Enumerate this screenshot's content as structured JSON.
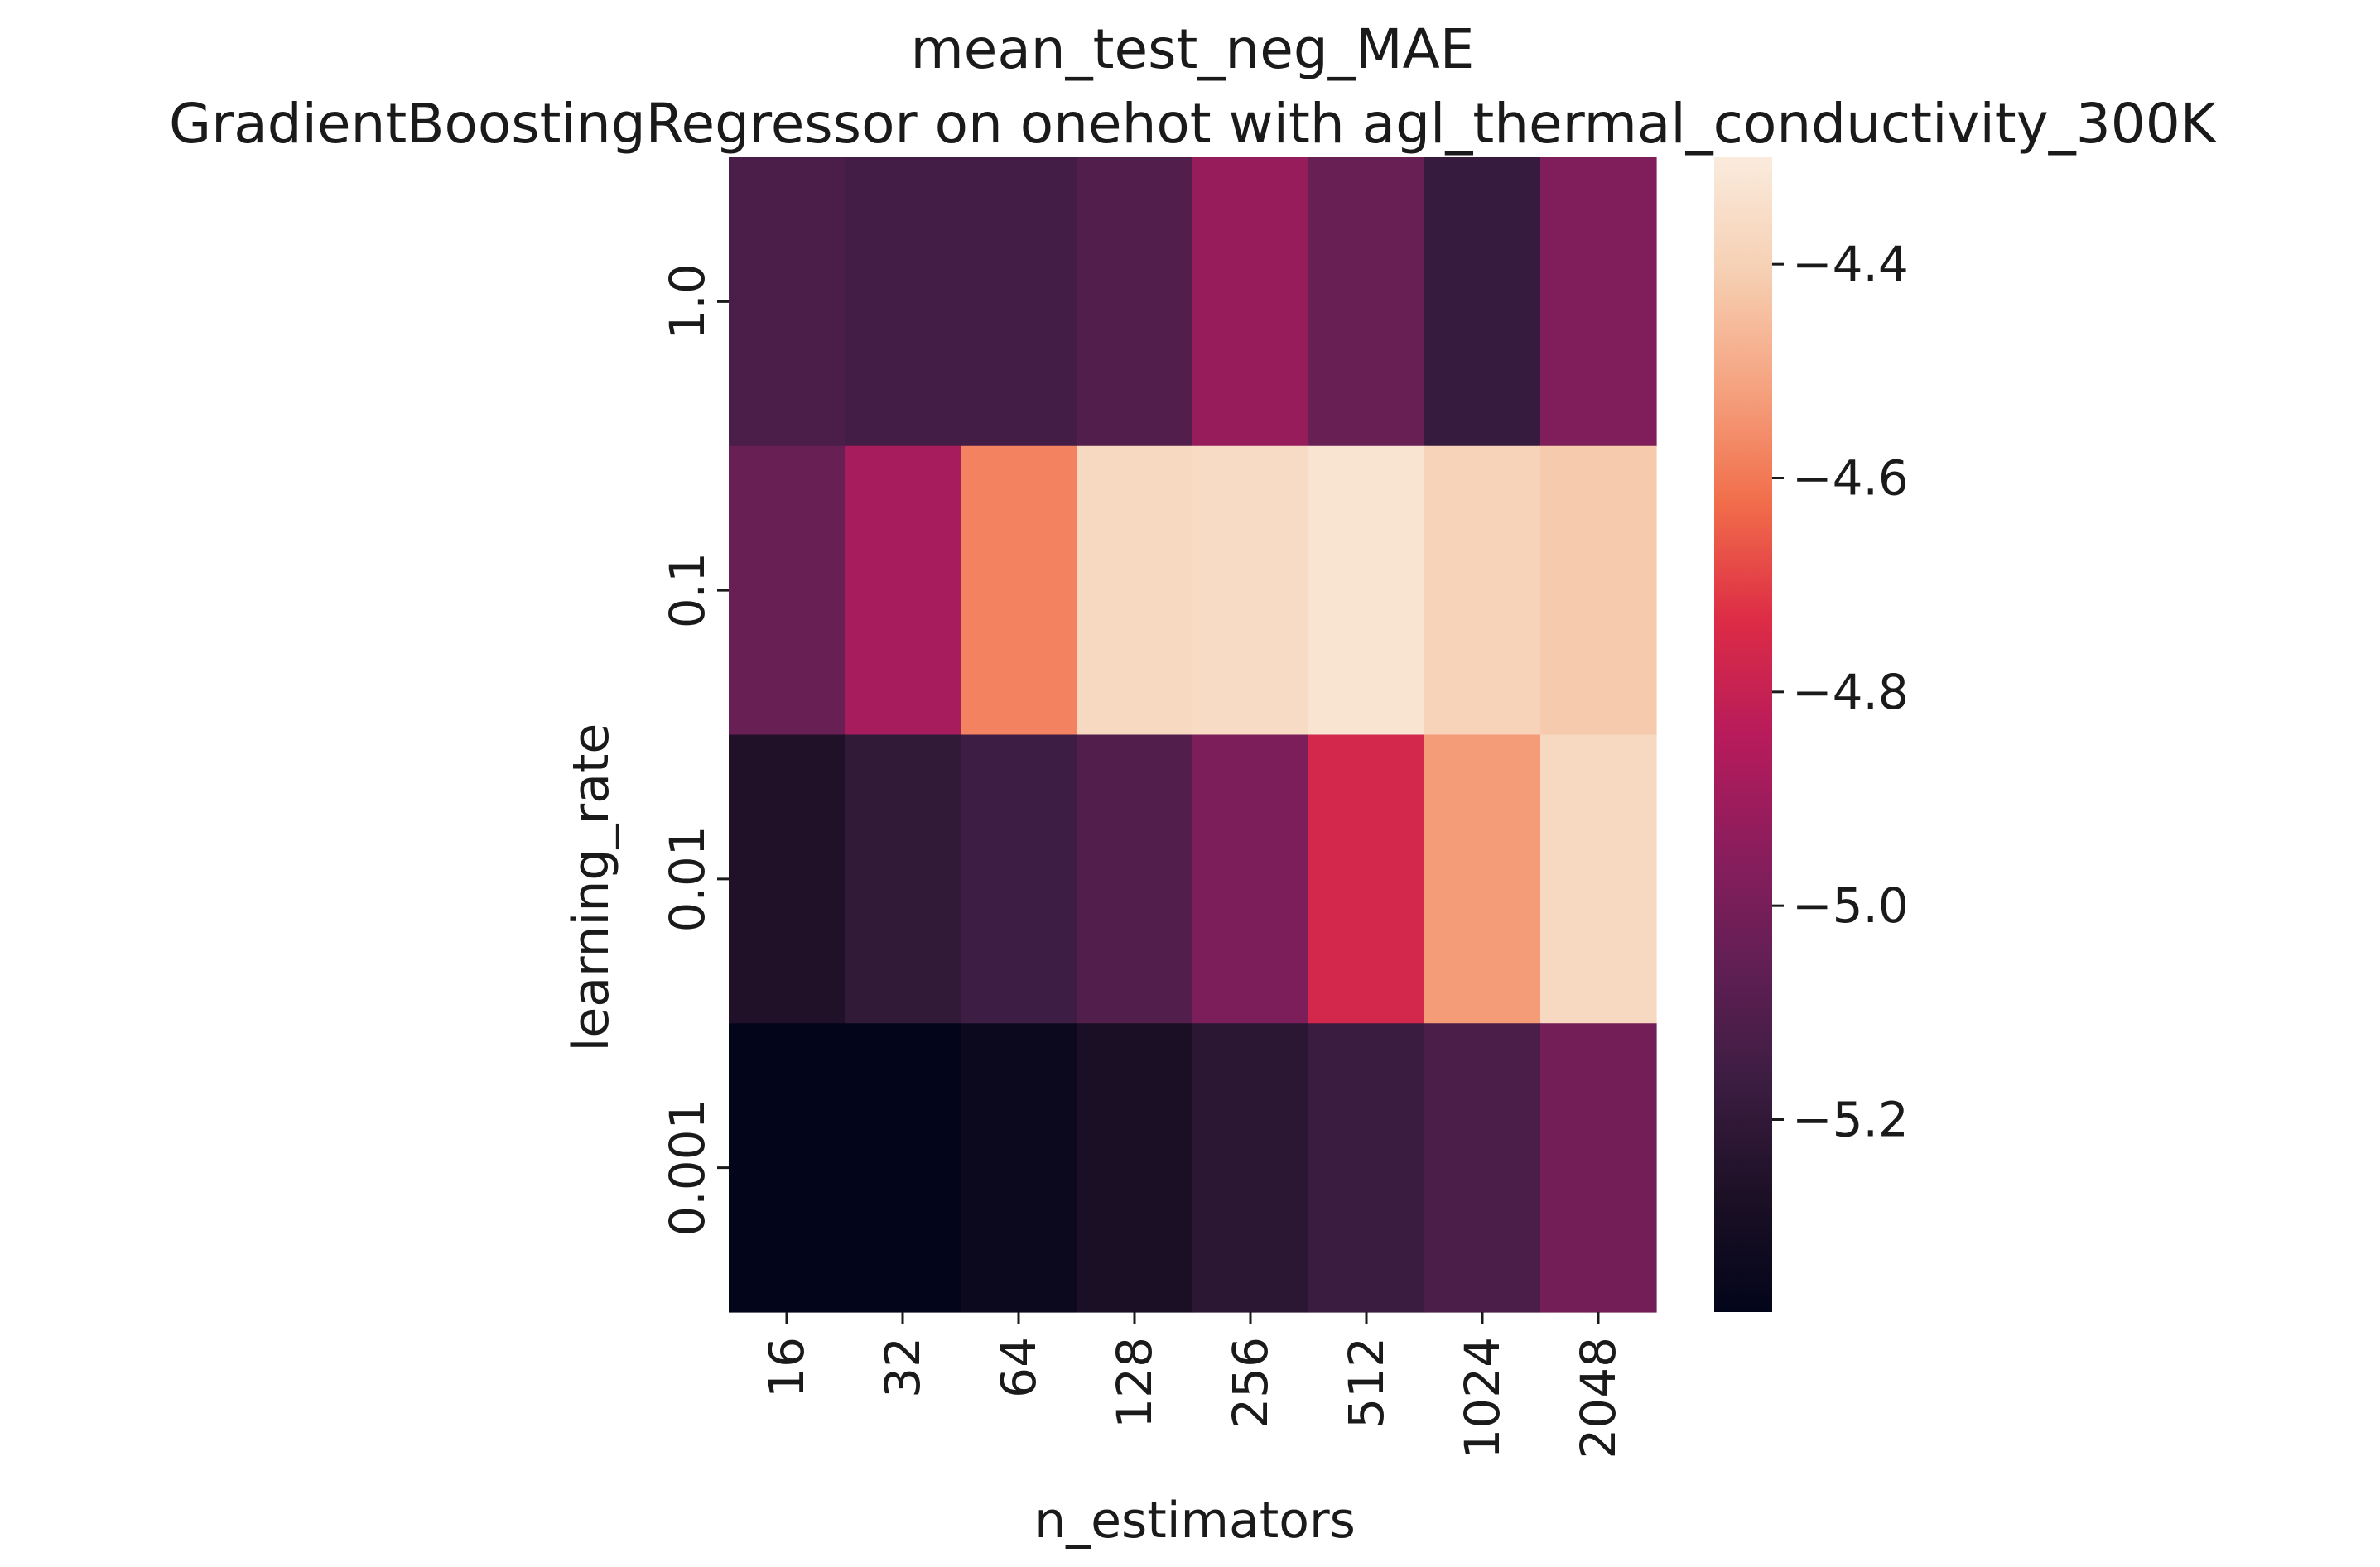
{
  "chart_data": {
    "type": "heatmap",
    "title": "mean_test_neg_MAE",
    "subtitle": "GradientBoostingRegressor on onehot with agl_thermal_conductivity_300K",
    "xlabel": "n_estimators",
    "ylabel": "learning_rate",
    "x_categories": [
      "16",
      "32",
      "64",
      "128",
      "256",
      "512",
      "1024",
      "2048"
    ],
    "y_categories": [
      "1.0",
      "0.1",
      "0.01",
      "0.001"
    ],
    "values": [
      [
        -5.12,
        -5.14,
        -5.14,
        -5.1,
        -4.92,
        -5.04,
        -5.18,
        -4.98
      ],
      [
        -5.04,
        -4.88,
        -4.58,
        -4.37,
        -4.36,
        -4.33,
        -4.39,
        -4.42
      ],
      [
        -5.26,
        -5.2,
        -5.16,
        -5.1,
        -4.99,
        -4.76,
        -4.53,
        -4.37
      ],
      [
        -5.38,
        -5.38,
        -5.34,
        -5.28,
        -5.22,
        -5.17,
        -5.12,
        -5.01
      ]
    ],
    "colorbar": {
      "min": -5.38,
      "max": -4.3,
      "ticks": [
        -4.4,
        -4.6,
        -4.8,
        -5.0,
        -5.2
      ],
      "tick_labels": [
        "−4.4",
        "−4.6",
        "−4.8",
        "−5.0",
        "−5.2"
      ]
    },
    "colormap": "rocket",
    "colormap_stops": [
      "#03051a",
      "#1c1025",
      "#3c1d42",
      "#611f53",
      "#8b1d5d",
      "#b81b5b",
      "#dd2c45",
      "#f16d4a",
      "#f5a27f",
      "#f6cfb2",
      "#faebdd"
    ]
  }
}
